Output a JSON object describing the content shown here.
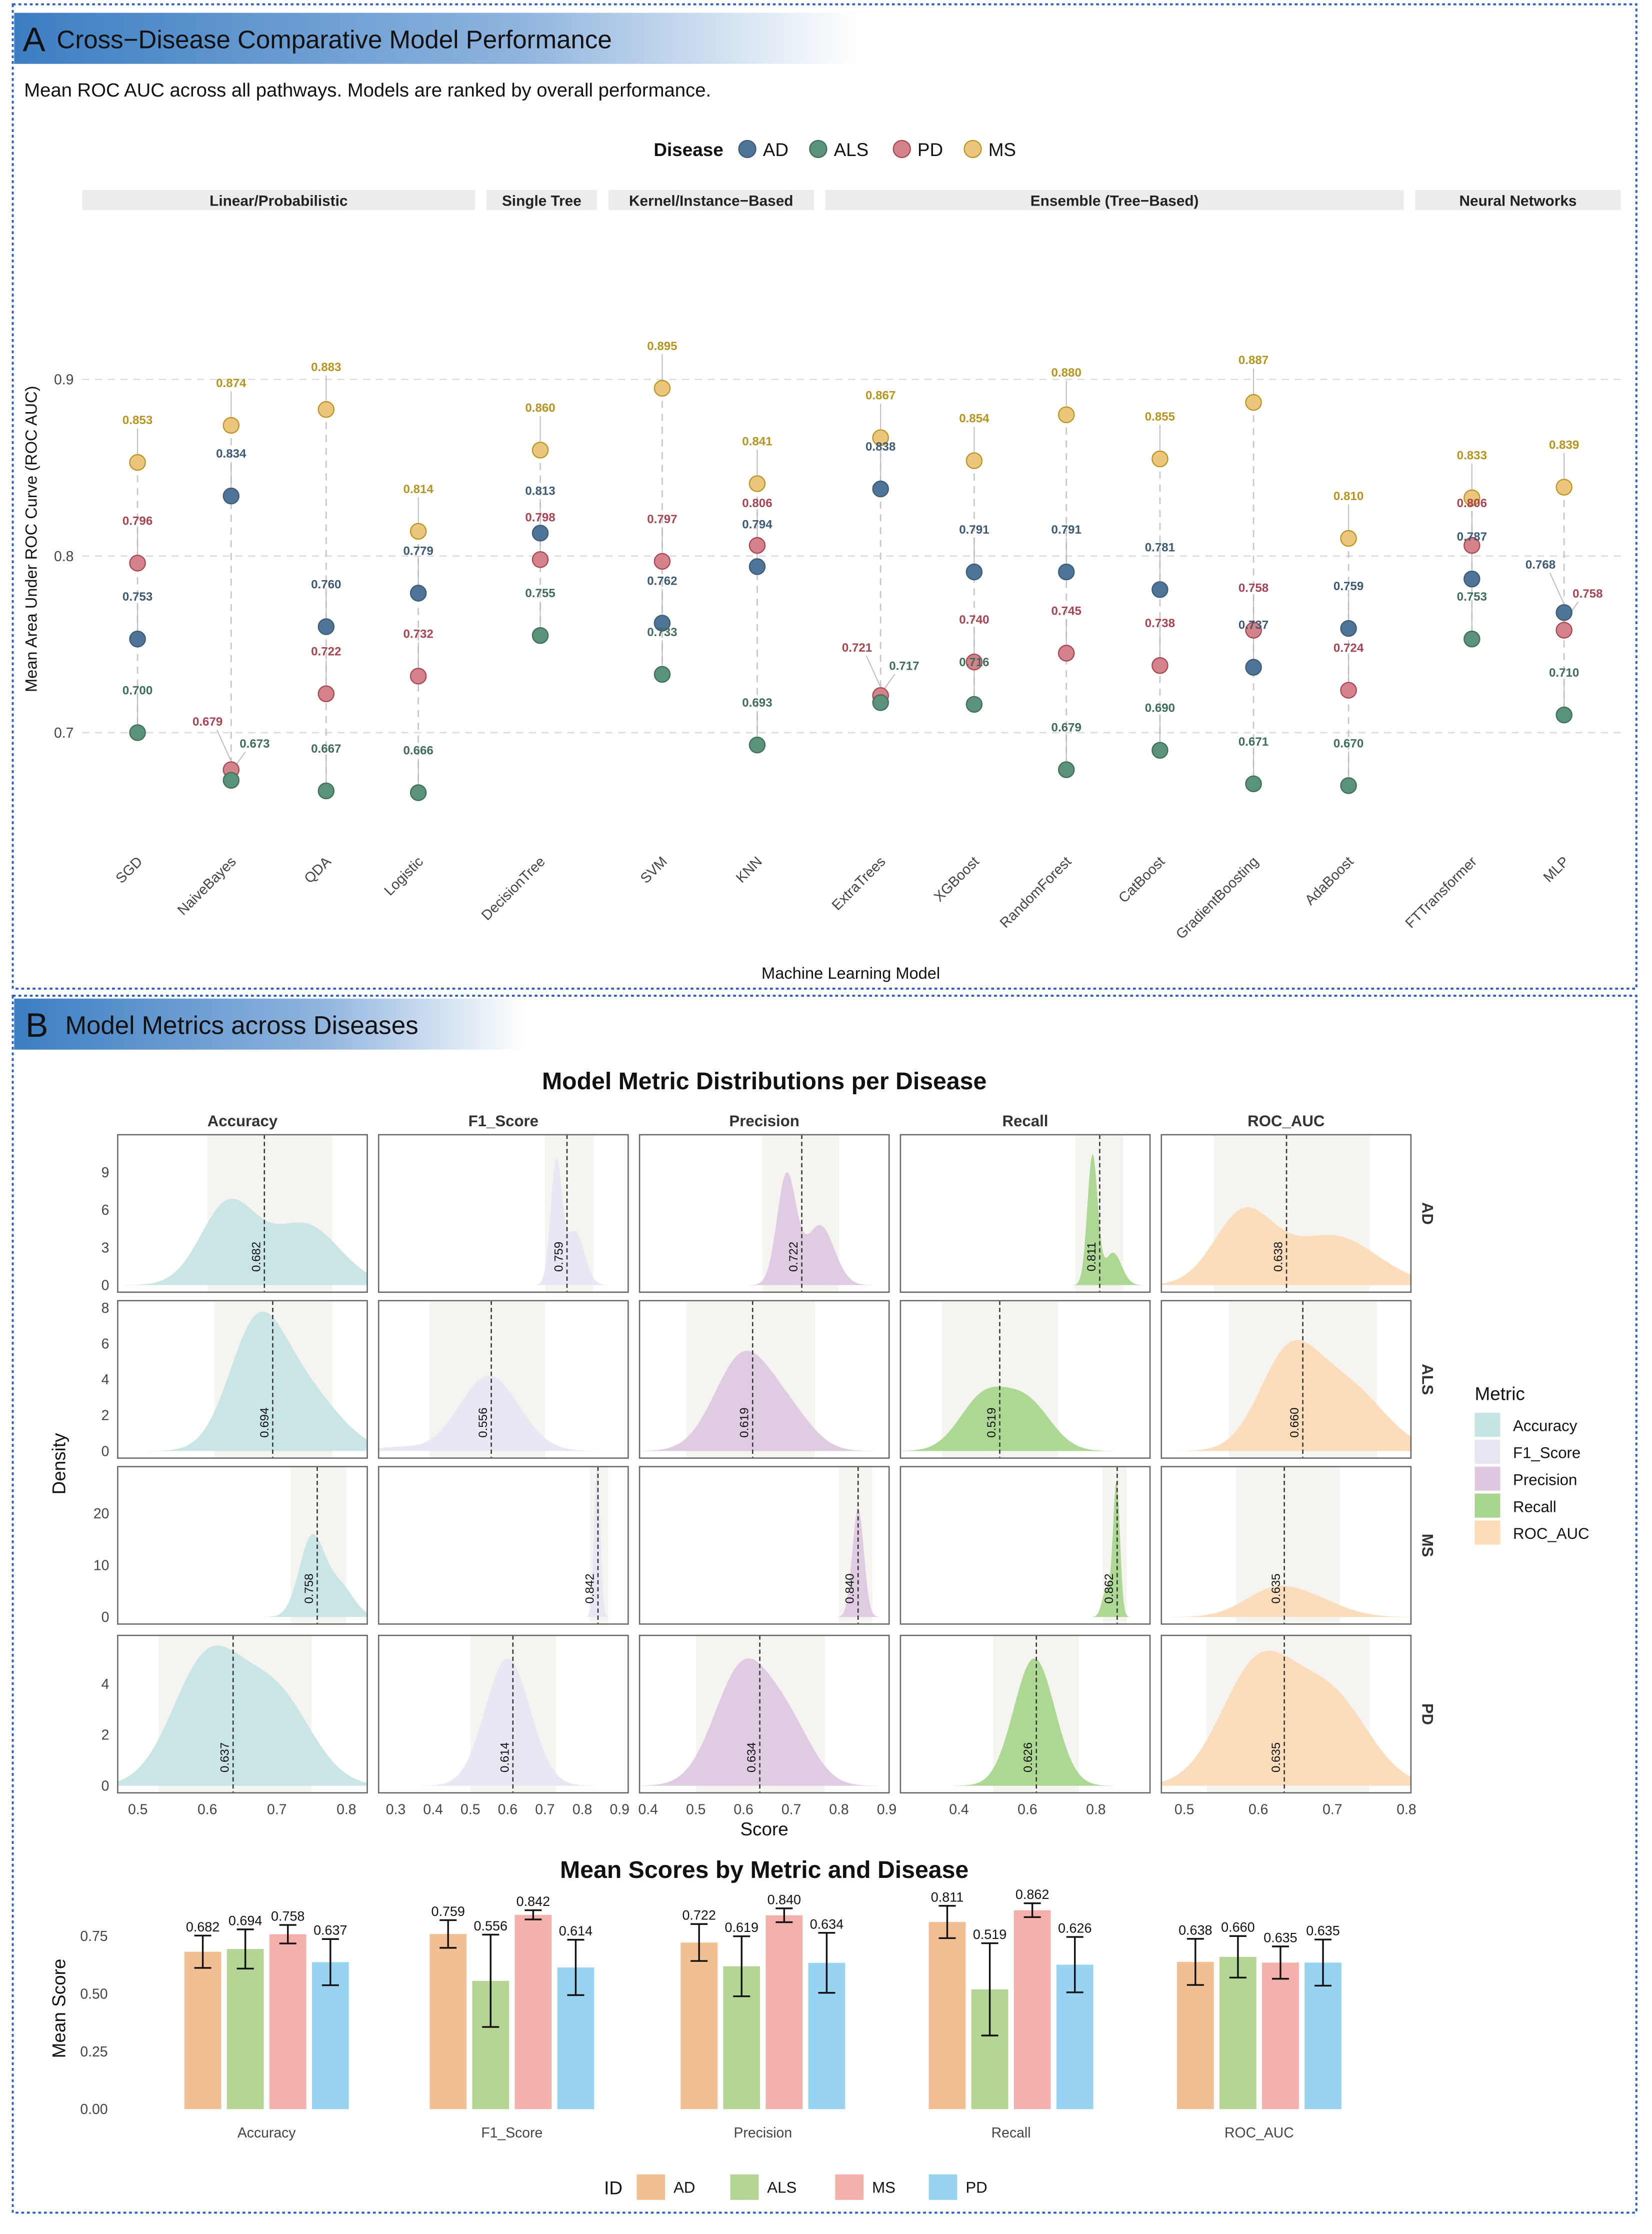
{
  "panel_a": {
    "letter": "A",
    "title": "Cross−Disease Comparative Model Performance",
    "subtitle": "Mean ROC AUC across all pathways. Models are ranked by overall performance."
  },
  "panel_b": {
    "letter": "B",
    "title": "Model Metrics across Diseases"
  },
  "colors": {
    "AD": "#4E7598",
    "ALS": "#5B927A",
    "PD": "#D5838B",
    "MS": "#EBC67C",
    "AD_label": "#3D5A75",
    "ALS_label": "#3E6E5A",
    "PD_label": "#A84452",
    "MS_label": "#B8941F",
    "frame": "#2B5FC9",
    "header": "#3C7EC2"
  },
  "chart_data": [
    {
      "type": "scatter",
      "title": "Mean ROC AUC across all pathways",
      "xlabel": "Machine Learning Model",
      "ylabel": "Mean Area Under ROC Curve (ROC AUC)",
      "ylim": [
        0.64,
        0.9
      ],
      "yticks": [
        "0.7",
        "0.8",
        "0.9"
      ],
      "grid": true,
      "legend": {
        "title": "Disease",
        "position": "top",
        "entries": [
          "AD",
          "ALS",
          "PD",
          "MS"
        ]
      },
      "groups": [
        "Linear/Probabilistic",
        "Single Tree",
        "Kernel/Instance−Based",
        "Ensemble (Tree−Based)",
        "Neural Networks"
      ],
      "models": [
        {
          "name": "SGD",
          "group": 0,
          "AD": 0.753,
          "ALS": 0.7,
          "PD": 0.796,
          "MS": 0.853
        },
        {
          "name": "NaiveBayes",
          "group": 0,
          "AD": 0.834,
          "ALS": 0.673,
          "PD": 0.679,
          "MS": 0.874
        },
        {
          "name": "QDA",
          "group": 0,
          "AD": 0.76,
          "ALS": 0.667,
          "PD": 0.722,
          "MS": 0.883
        },
        {
          "name": "Logistic",
          "group": 0,
          "AD": 0.779,
          "ALS": 0.666,
          "PD": 0.732,
          "MS": 0.814
        },
        {
          "name": "DecisionTree",
          "group": 1,
          "AD": 0.813,
          "ALS": 0.755,
          "PD": 0.798,
          "MS": 0.86
        },
        {
          "name": "SVM",
          "group": 2,
          "AD": 0.762,
          "ALS": 0.733,
          "PD": 0.797,
          "MS": 0.895
        },
        {
          "name": "KNN",
          "group": 2,
          "AD": 0.794,
          "ALS": 0.693,
          "PD": 0.806,
          "MS": 0.841
        },
        {
          "name": "ExtraTrees",
          "group": 3,
          "AD": 0.838,
          "ALS": 0.717,
          "PD": 0.721,
          "MS": 0.867
        },
        {
          "name": "XGBoost",
          "group": 3,
          "AD": 0.791,
          "ALS": 0.716,
          "PD": 0.74,
          "MS": 0.854
        },
        {
          "name": "RandomForest",
          "group": 3,
          "AD": 0.791,
          "ALS": 0.679,
          "PD": 0.745,
          "MS": 0.88
        },
        {
          "name": "CatBoost",
          "group": 3,
          "AD": 0.781,
          "ALS": 0.69,
          "PD": 0.738,
          "MS": 0.855
        },
        {
          "name": "GradientBoosting",
          "group": 3,
          "AD": 0.737,
          "ALS": 0.671,
          "PD": 0.758,
          "MS": 0.887
        },
        {
          "name": "AdaBoost",
          "group": 3,
          "AD": 0.759,
          "ALS": 0.67,
          "PD": 0.724,
          "MS": 0.81
        },
        {
          "name": "FTTransformer",
          "group": 4,
          "AD": 0.787,
          "ALS": 0.753,
          "PD": 0.806,
          "MS": 0.833
        },
        {
          "name": "MLP",
          "group": 4,
          "AD": 0.768,
          "ALS": 0.71,
          "PD": 0.758,
          "MS": 0.839
        }
      ]
    },
    {
      "type": "area",
      "title": "Model Metric Distributions per Disease",
      "xlabel": "Score",
      "ylabel": "Density",
      "metrics": [
        "Accuracy",
        "F1_Score",
        "Precision",
        "Recall",
        "ROC_AUC"
      ],
      "diseases": [
        "AD",
        "ALS",
        "MS",
        "PD"
      ],
      "metric_colors": {
        "Accuracy": "#C6E4E4",
        "F1_Score": "#E7E6F3",
        "Precision": "#DDC8E0",
        "Recall": "#A9D68E",
        "ROC_AUC": "#FBDBB8"
      },
      "legend": {
        "title": "Metric",
        "position": "right"
      },
      "xlim": {
        "Accuracy": [
          0.471,
          0.83
        ],
        "F1_Score": [
          0.254,
          0.923
        ],
        "Precision": [
          0.382,
          0.905
        ],
        "Recall": [
          0.229,
          0.958
        ],
        "ROC_AUC": [
          0.469,
          0.806
        ]
      },
      "xticks": {
        "Accuracy": [
          "0.5",
          "0.6",
          "0.7",
          "0.8"
        ],
        "F1_Score": [
          "0.3",
          "0.4",
          "0.5",
          "0.6",
          "0.7",
          "0.8",
          "0.9"
        ],
        "Precision": [
          "0.4",
          "0.5",
          "0.6",
          "0.7",
          "0.8",
          "0.9"
        ],
        "Recall": [
          "0.4",
          "0.6",
          "0.8"
        ],
        "ROC_AUC": [
          "0.5",
          "0.6",
          "0.7",
          "0.8"
        ]
      },
      "ylim": {
        "AD": [
          0,
          12
        ],
        "ALS": [
          0,
          8.4
        ],
        "MS": [
          0,
          29
        ],
        "PD": [
          0,
          5.9
        ]
      },
      "yticks": {
        "AD": [
          "0",
          "3",
          "6",
          "9"
        ],
        "ALS": [
          "0",
          "2",
          "4",
          "6",
          "8"
        ],
        "MS": [
          "0",
          "10",
          "20"
        ],
        "PD": [
          "0",
          "2",
          "4"
        ]
      },
      "panels": {
        "AD": {
          "Accuracy": {
            "mean": "0.682",
            "peak": 6.9,
            "band": [
              0.6,
              0.78
            ],
            "comps": [
              [
                0.63,
                0.04,
                1
              ],
              [
                0.74,
                0.05,
                0.75
              ]
            ]
          },
          "F1_Score": {
            "mean": "0.759",
            "peak": 10.2,
            "band": [
              0.7,
              0.83
            ],
            "comps": [
              [
                0.73,
                0.015,
                1
              ],
              [
                0.78,
                0.025,
                0.45
              ]
            ]
          },
          "Precision": {
            "mean": "0.722",
            "peak": 9.0,
            "band": [
              0.64,
              0.8
            ],
            "comps": [
              [
                0.69,
                0.02,
                1
              ],
              [
                0.76,
                0.03,
                0.55
              ]
            ]
          },
          "Recall": {
            "mean": "0.811",
            "peak": 10.5,
            "band": [
              0.74,
              0.88
            ],
            "comps": [
              [
                0.79,
                0.015,
                1
              ],
              [
                0.85,
                0.025,
                0.25
              ]
            ]
          },
          "ROC_AUC": {
            "mean": "0.638",
            "peak": 6.2,
            "band": [
              0.54,
              0.75
            ],
            "comps": [
              [
                0.58,
                0.04,
                1
              ],
              [
                0.7,
                0.06,
                0.7
              ]
            ]
          }
        },
        "ALS": {
          "Accuracy": {
            "mean": "0.694",
            "peak": 7.8,
            "band": [
              0.61,
              0.78
            ],
            "comps": [
              [
                0.67,
                0.04,
                1
              ],
              [
                0.74,
                0.05,
                0.5
              ]
            ]
          },
          "F1_Score": {
            "mean": "0.556",
            "peak": 4.2,
            "band": [
              0.39,
              0.7
            ],
            "comps": [
              [
                0.55,
                0.08,
                1
              ],
              [
                0.3,
                0.05,
                0.05
              ]
            ]
          },
          "Precision": {
            "mean": "0.619",
            "peak": 5.6,
            "band": [
              0.48,
              0.75
            ],
            "comps": [
              [
                0.6,
                0.06,
                1
              ],
              [
                0.7,
                0.05,
                0.3
              ]
            ]
          },
          "Recall": {
            "mean": "0.519",
            "peak": 3.6,
            "band": [
              0.35,
              0.69
            ],
            "comps": [
              [
                0.47,
                0.07,
                1
              ],
              [
                0.6,
                0.07,
                0.9
              ]
            ]
          },
          "ROC_AUC": {
            "mean": "0.660",
            "peak": 6.2,
            "band": [
              0.56,
              0.76
            ],
            "comps": [
              [
                0.64,
                0.04,
                1
              ],
              [
                0.72,
                0.05,
                0.7
              ]
            ]
          }
        },
        "MS": {
          "Accuracy": {
            "mean": "0.758",
            "peak": 16,
            "band": [
              0.72,
              0.8
            ],
            "comps": [
              [
                0.75,
                0.018,
                1
              ],
              [
                0.79,
                0.02,
                0.4
              ]
            ]
          },
          "F1_Score": {
            "mean": "0.842",
            "peak": 30,
            "band": [
              0.82,
              0.87
            ],
            "comps": [
              [
                0.84,
                0.008,
                1
              ]
            ]
          },
          "Precision": {
            "mean": "0.840",
            "peak": 21,
            "band": [
              0.8,
              0.87
            ],
            "comps": [
              [
                0.84,
                0.012,
                1
              ]
            ]
          },
          "Recall": {
            "mean": "0.862",
            "peak": 26,
            "band": [
              0.82,
              0.89
            ],
            "comps": [
              [
                0.86,
                0.01,
                1
              ],
              [
                0.83,
                0.012,
                0.2
              ]
            ]
          },
          "ROC_AUC": {
            "mean": "0.635",
            "peak": 6,
            "band": [
              0.57,
              0.71
            ],
            "comps": [
              [
                0.62,
                0.04,
                1
              ],
              [
                0.68,
                0.04,
                0.5
              ]
            ]
          }
        },
        "PD": {
          "Accuracy": {
            "mean": "0.637",
            "peak": 5.5,
            "band": [
              0.53,
              0.75
            ],
            "comps": [
              [
                0.6,
                0.05,
                1
              ],
              [
                0.7,
                0.05,
                0.7
              ]
            ]
          },
          "F1_Score": {
            "mean": "0.614",
            "peak": 5,
            "band": [
              0.5,
              0.73
            ],
            "comps": [
              [
                0.6,
                0.06,
                1
              ]
            ]
          },
          "Precision": {
            "mean": "0.634",
            "peak": 5,
            "band": [
              0.5,
              0.77
            ],
            "comps": [
              [
                0.6,
                0.06,
                1
              ],
              [
                0.7,
                0.05,
                0.4
              ]
            ]
          },
          "Recall": {
            "mean": "0.626",
            "peak": 5,
            "band": [
              0.5,
              0.75
            ],
            "comps": [
              [
                0.62,
                0.06,
                1
              ]
            ]
          },
          "ROC_AUC": {
            "mean": "0.635",
            "peak": 5.3,
            "band": [
              0.53,
              0.75
            ],
            "comps": [
              [
                0.6,
                0.05,
                1
              ],
              [
                0.7,
                0.05,
                0.7
              ]
            ]
          }
        }
      }
    },
    {
      "type": "bar",
      "title": "Mean Scores by Metric and Disease",
      "xlabel": "",
      "ylabel": "Mean Score",
      "ylim": [
        0,
        0.9
      ],
      "yticks": [
        "0.00",
        "0.25",
        "0.50",
        "0.75"
      ],
      "categories": [
        "Accuracy",
        "F1_Score",
        "Precision",
        "Recall",
        "ROC_AUC"
      ],
      "legend": {
        "title": "ID",
        "position": "bottom"
      },
      "series": [
        {
          "name": "AD",
          "color": "#F2BF93",
          "values": [
            0.682,
            0.759,
            0.722,
            0.811,
            0.638
          ],
          "err": [
            0.07,
            0.06,
            0.08,
            0.07,
            0.1
          ]
        },
        {
          "name": "ALS",
          "color": "#B5D595",
          "values": [
            0.694,
            0.556,
            0.619,
            0.519,
            0.66
          ],
          "err": [
            0.085,
            0.2,
            0.13,
            0.2,
            0.09
          ]
        },
        {
          "name": "MS",
          "color": "#F4B0AB",
          "values": [
            0.758,
            0.842,
            0.84,
            0.862,
            0.635
          ],
          "err": [
            0.04,
            0.02,
            0.03,
            0.03,
            0.07
          ]
        },
        {
          "name": "PD",
          "color": "#98D3F1",
          "values": [
            0.637,
            0.614,
            0.634,
            0.626,
            0.635
          ],
          "err": [
            0.1,
            0.12,
            0.13,
            0.12,
            0.1
          ]
        }
      ]
    }
  ]
}
